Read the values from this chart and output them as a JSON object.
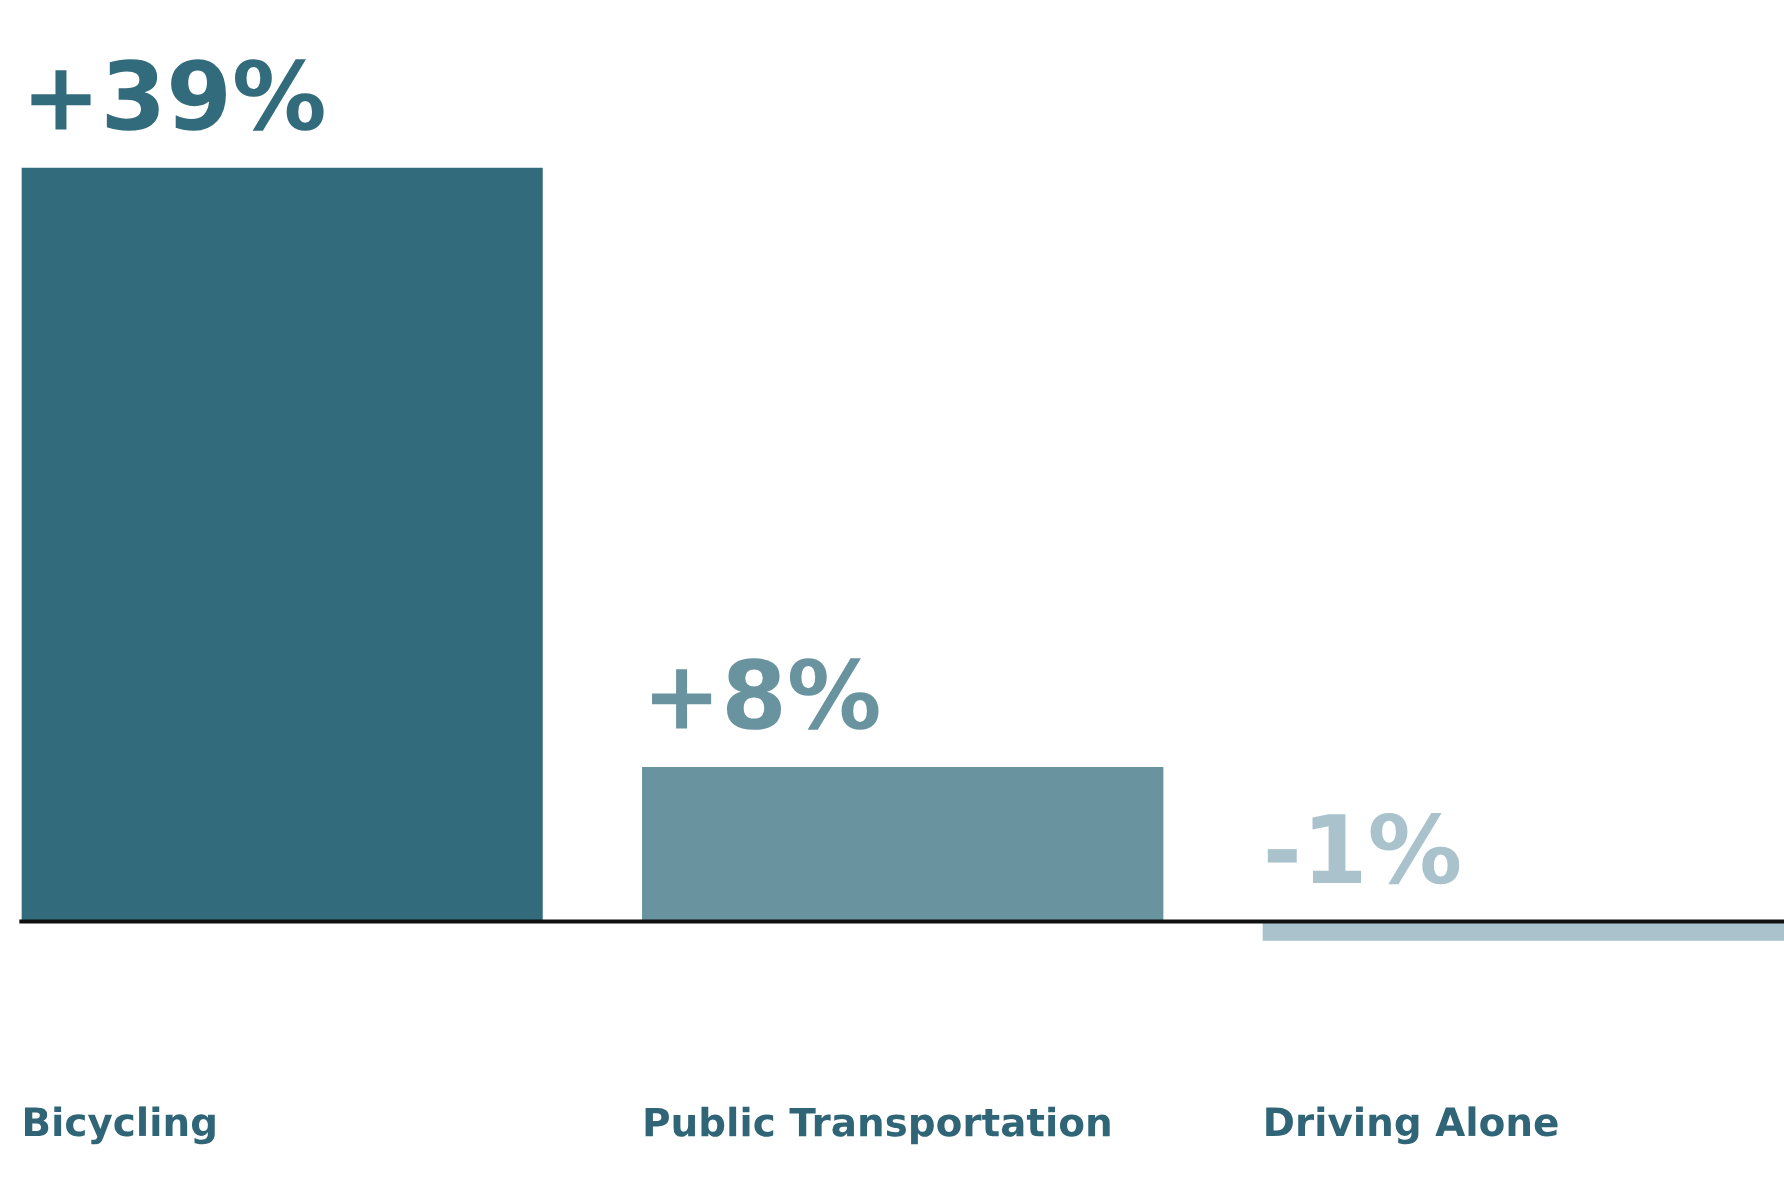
{
  "chart_data": {
    "type": "bar",
    "categories": [
      "Bicycling",
      "Public Transportation",
      "Driving Alone"
    ],
    "values": [
      39,
      8,
      -1
    ],
    "colors": [
      "#326b7b",
      "#6a93a0",
      "#a9c2cc"
    ],
    "value_labels": [
      "+39%",
      "+8%",
      "-1%"
    ]
  }
}
